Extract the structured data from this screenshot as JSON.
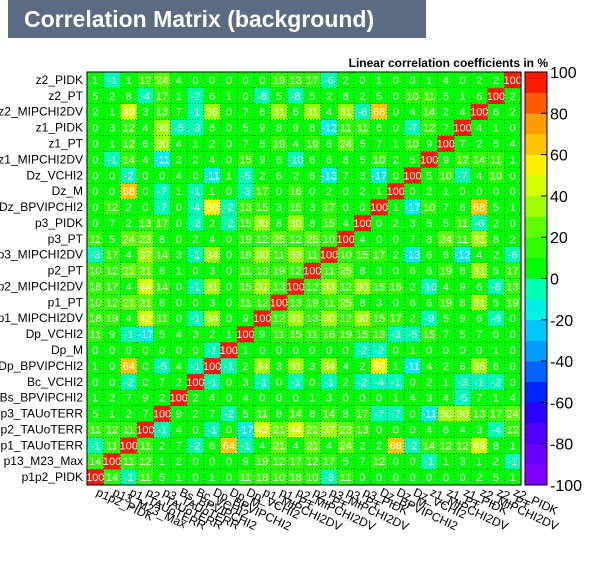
{
  "title": "Correlation Matrix (background)",
  "subtitle": "Linear correlation coefficients in %",
  "chart_data": {
    "type": "heatmap",
    "value_range": [
      -100,
      100
    ],
    "colorbar_ticks": [
      100,
      80,
      60,
      40,
      20,
      0,
      -20,
      -40,
      -60,
      -80,
      -100
    ],
    "labels": [
      "p1p2_PIDK",
      "p13_M23_Max",
      "p1_TAUoTERR",
      "p2_TAUoTERR",
      "p3_TAUoTERR",
      "Bs_BPVIPCHI2",
      "Bc_VCHI2",
      "Dp_BPVIPCHI2",
      "Dp_M",
      "Dp_VCHI2",
      "p1_MIPCHI2DV",
      "p1_PT",
      "p2_MIPCHI2DV",
      "p2_PT",
      "p3_MIPCHI2DV",
      "p3_PT",
      "p3_PIDK",
      "Dz_BPVIPCHI2",
      "Dz_M",
      "Dz_VCHI2",
      "z1_MIPCHI2DV",
      "z1_PT",
      "z1_PIDK",
      "z2_MIPCHI2DV",
      "z2_PT",
      "z2_PIDK"
    ],
    "y_tick_labels": [
      "p1p2_PIDK",
      "p13_M23_Max",
      "p1_TAUoTERR",
      "p2_TAUoTERR",
      "p3_TAUoTERR",
      "Bs_BPVIPCHI2",
      "Bc_VCHI2",
      "Dp_BPVIPCHI2",
      "Dp_M",
      "Dp_VCHI2",
      "p1_MIPCHI2DV",
      "p1_PT",
      "p2_MIPCHI2DV",
      "p2_PT",
      "p3_MIPCHI2DV",
      "p3_PT",
      "p3_PIDK",
      "Dz_BPVIPCHI2",
      "Dz_M",
      "Dz_VCHI2",
      "z1_MIPCHI2DV",
      "z1_PT",
      "z1_PIDK",
      "z2_MIPCHI2DV",
      "z2_PT",
      "z2_PIDK"
    ],
    "matrix": [
      [
        100,
        14,
        -1,
        11,
        5,
        1,
        0,
        1,
        0,
        11,
        18,
        10,
        18,
        10,
        -3,
        11,
        0,
        0,
        0,
        0,
        0,
        0,
        0,
        2,
        5,
        1
      ],
      [
        14,
        100,
        11,
        12,
        1,
        2,
        0,
        0,
        0,
        9,
        19,
        12,
        17,
        12,
        17,
        5,
        7,
        12,
        0,
        0,
        -1,
        1,
        3,
        1,
        2,
        -1
      ],
      [
        -1,
        11,
        100,
        11,
        2,
        7,
        -2,
        6,
        64,
        -1,
        4,
        21,
        4,
        21,
        4,
        24,
        2,
        2,
        68,
        -2,
        14,
        12,
        12,
        49,
        8,
        1
      ],
      [
        11,
        12,
        11,
        100,
        -1,
        4,
        0,
        -1,
        0,
        -17,
        42,
        21,
        44,
        21,
        37,
        23,
        13,
        0,
        0,
        0,
        4,
        6,
        4,
        3,
        -4,
        12
      ],
      [
        5,
        1,
        2,
        7,
        100,
        9,
        2,
        7,
        -2,
        5,
        11,
        8,
        14,
        8,
        14,
        8,
        17,
        -7,
        -7,
        0,
        -11,
        30,
        30,
        13,
        17,
        24
      ],
      [
        1,
        2,
        7,
        9,
        2,
        100,
        2,
        4,
        0,
        4,
        0,
        0,
        0,
        1,
        3,
        0,
        0,
        0,
        1,
        4,
        3,
        4,
        -5,
        7,
        1,
        4
      ],
      [
        0,
        0,
        -2,
        0,
        7,
        2,
        100,
        -1,
        0,
        3,
        -1,
        0,
        -1,
        0,
        -1,
        2,
        -2,
        -4,
        -1,
        0,
        2,
        1,
        -3,
        -1,
        -2,
        0
      ],
      [
        1,
        0,
        64,
        0,
        -5,
        4,
        -1,
        100,
        -1,
        2,
        34,
        3,
        31,
        3,
        34,
        4,
        2,
        50,
        1,
        -11,
        4,
        2,
        6,
        36,
        6,
        0
      ],
      [
        0,
        0,
        0,
        0,
        0,
        0,
        0,
        -1,
        100,
        1,
        0,
        0,
        0,
        0,
        0,
        0,
        -2,
        -2,
        0,
        1,
        0,
        0,
        0,
        0,
        1,
        0
      ],
      [
        11,
        9,
        -1,
        -17,
        5,
        4,
        3,
        2,
        1,
        100,
        9,
        11,
        15,
        11,
        16,
        19,
        15,
        13,
        -3,
        -5,
        15,
        7,
        5,
        7,
        0,
        0
      ],
      [
        18,
        19,
        4,
        42,
        11,
        0,
        -1,
        34,
        0,
        9,
        100,
        12,
        31,
        13,
        30,
        12,
        30,
        15,
        17,
        2,
        -9,
        5,
        9,
        6,
        -8,
        0
      ],
      [
        10,
        12,
        21,
        21,
        8,
        0,
        0,
        3,
        0,
        11,
        12,
        100,
        13,
        19,
        11,
        25,
        8,
        3,
        0,
        6,
        6,
        19,
        8,
        31,
        5,
        19
      ],
      [
        18,
        17,
        4,
        44,
        14,
        0,
        -1,
        31,
        0,
        15,
        31,
        13,
        100,
        12,
        33,
        12,
        30,
        15,
        16,
        2,
        -10,
        4,
        9,
        6,
        -8,
        13
      ],
      [
        10,
        12,
        21,
        21,
        8,
        1,
        0,
        3,
        0,
        11,
        13,
        19,
        12,
        100,
        11,
        25,
        8,
        3,
        0,
        6,
        6,
        19,
        8,
        31,
        5,
        17
      ],
      [
        -3,
        17,
        4,
        37,
        14,
        3,
        -1,
        34,
        0,
        16,
        30,
        11,
        33,
        11,
        100,
        10,
        15,
        17,
        2,
        -13,
        6,
        6,
        -12,
        4,
        2,
        -6
      ],
      [
        11,
        5,
        24,
        23,
        8,
        0,
        2,
        4,
        0,
        19,
        12,
        25,
        12,
        25,
        10,
        100,
        4,
        0,
        0,
        7,
        8,
        24,
        11,
        31,
        8,
        2
      ],
      [
        0,
        7,
        2,
        13,
        17,
        0,
        -2,
        2,
        -2,
        15,
        30,
        8,
        30,
        8,
        15,
        4,
        100,
        0,
        2,
        3,
        5,
        5,
        11,
        -6,
        2,
        0
      ],
      [
        0,
        12,
        2,
        0,
        -7,
        0,
        -4,
        50,
        -2,
        13,
        15,
        3,
        15,
        3,
        17,
        0,
        0,
        100,
        1,
        -17,
        10,
        7,
        6,
        68,
        5,
        1
      ],
      [
        0,
        0,
        68,
        0,
        -7,
        1,
        -1,
        1,
        0,
        -3,
        17,
        0,
        16,
        0,
        2,
        0,
        2,
        1,
        100,
        0,
        2,
        1,
        0,
        0,
        0,
        0
      ],
      [
        0,
        0,
        -2,
        0,
        0,
        4,
        0,
        -11,
        1,
        -5,
        2,
        6,
        2,
        6,
        -13,
        7,
        3,
        -17,
        0,
        100,
        5,
        10,
        -7,
        4,
        10,
        0
      ],
      [
        0,
        -1,
        14,
        4,
        -11,
        3,
        2,
        4,
        0,
        15,
        9,
        6,
        -10,
        6,
        6,
        8,
        5,
        10,
        2,
        5,
        100,
        9,
        12,
        14,
        11,
        1
      ],
      [
        0,
        1,
        12,
        6,
        30,
        4,
        1,
        2,
        0,
        7,
        5,
        19,
        4,
        19,
        6,
        24,
        5,
        7,
        1,
        10,
        9,
        100,
        7,
        2,
        5,
        4
      ],
      [
        0,
        3,
        12,
        4,
        30,
        -5,
        -3,
        6,
        0,
        5,
        9,
        8,
        9,
        8,
        -12,
        11,
        11,
        6,
        0,
        -7,
        12,
        7,
        100,
        4,
        1,
        0
      ],
      [
        2,
        1,
        49,
        3,
        13,
        7,
        -1,
        36,
        0,
        7,
        6,
        31,
        6,
        31,
        4,
        31,
        -6,
        68,
        0,
        4,
        14,
        2,
        4,
        100,
        6,
        2
      ],
      [
        5,
        2,
        8,
        -4,
        17,
        1,
        -2,
        6,
        1,
        0,
        -8,
        5,
        -8,
        5,
        2,
        8,
        2,
        5,
        0,
        10,
        11,
        5,
        1,
        6,
        100,
        2
      ],
      [
        1,
        -1,
        1,
        12,
        24,
        4,
        0,
        0,
        0,
        0,
        0,
        19,
        13,
        17,
        -6,
        2,
        0,
        1,
        0,
        0,
        1,
        4,
        0,
        2,
        2,
        100
      ]
    ]
  }
}
